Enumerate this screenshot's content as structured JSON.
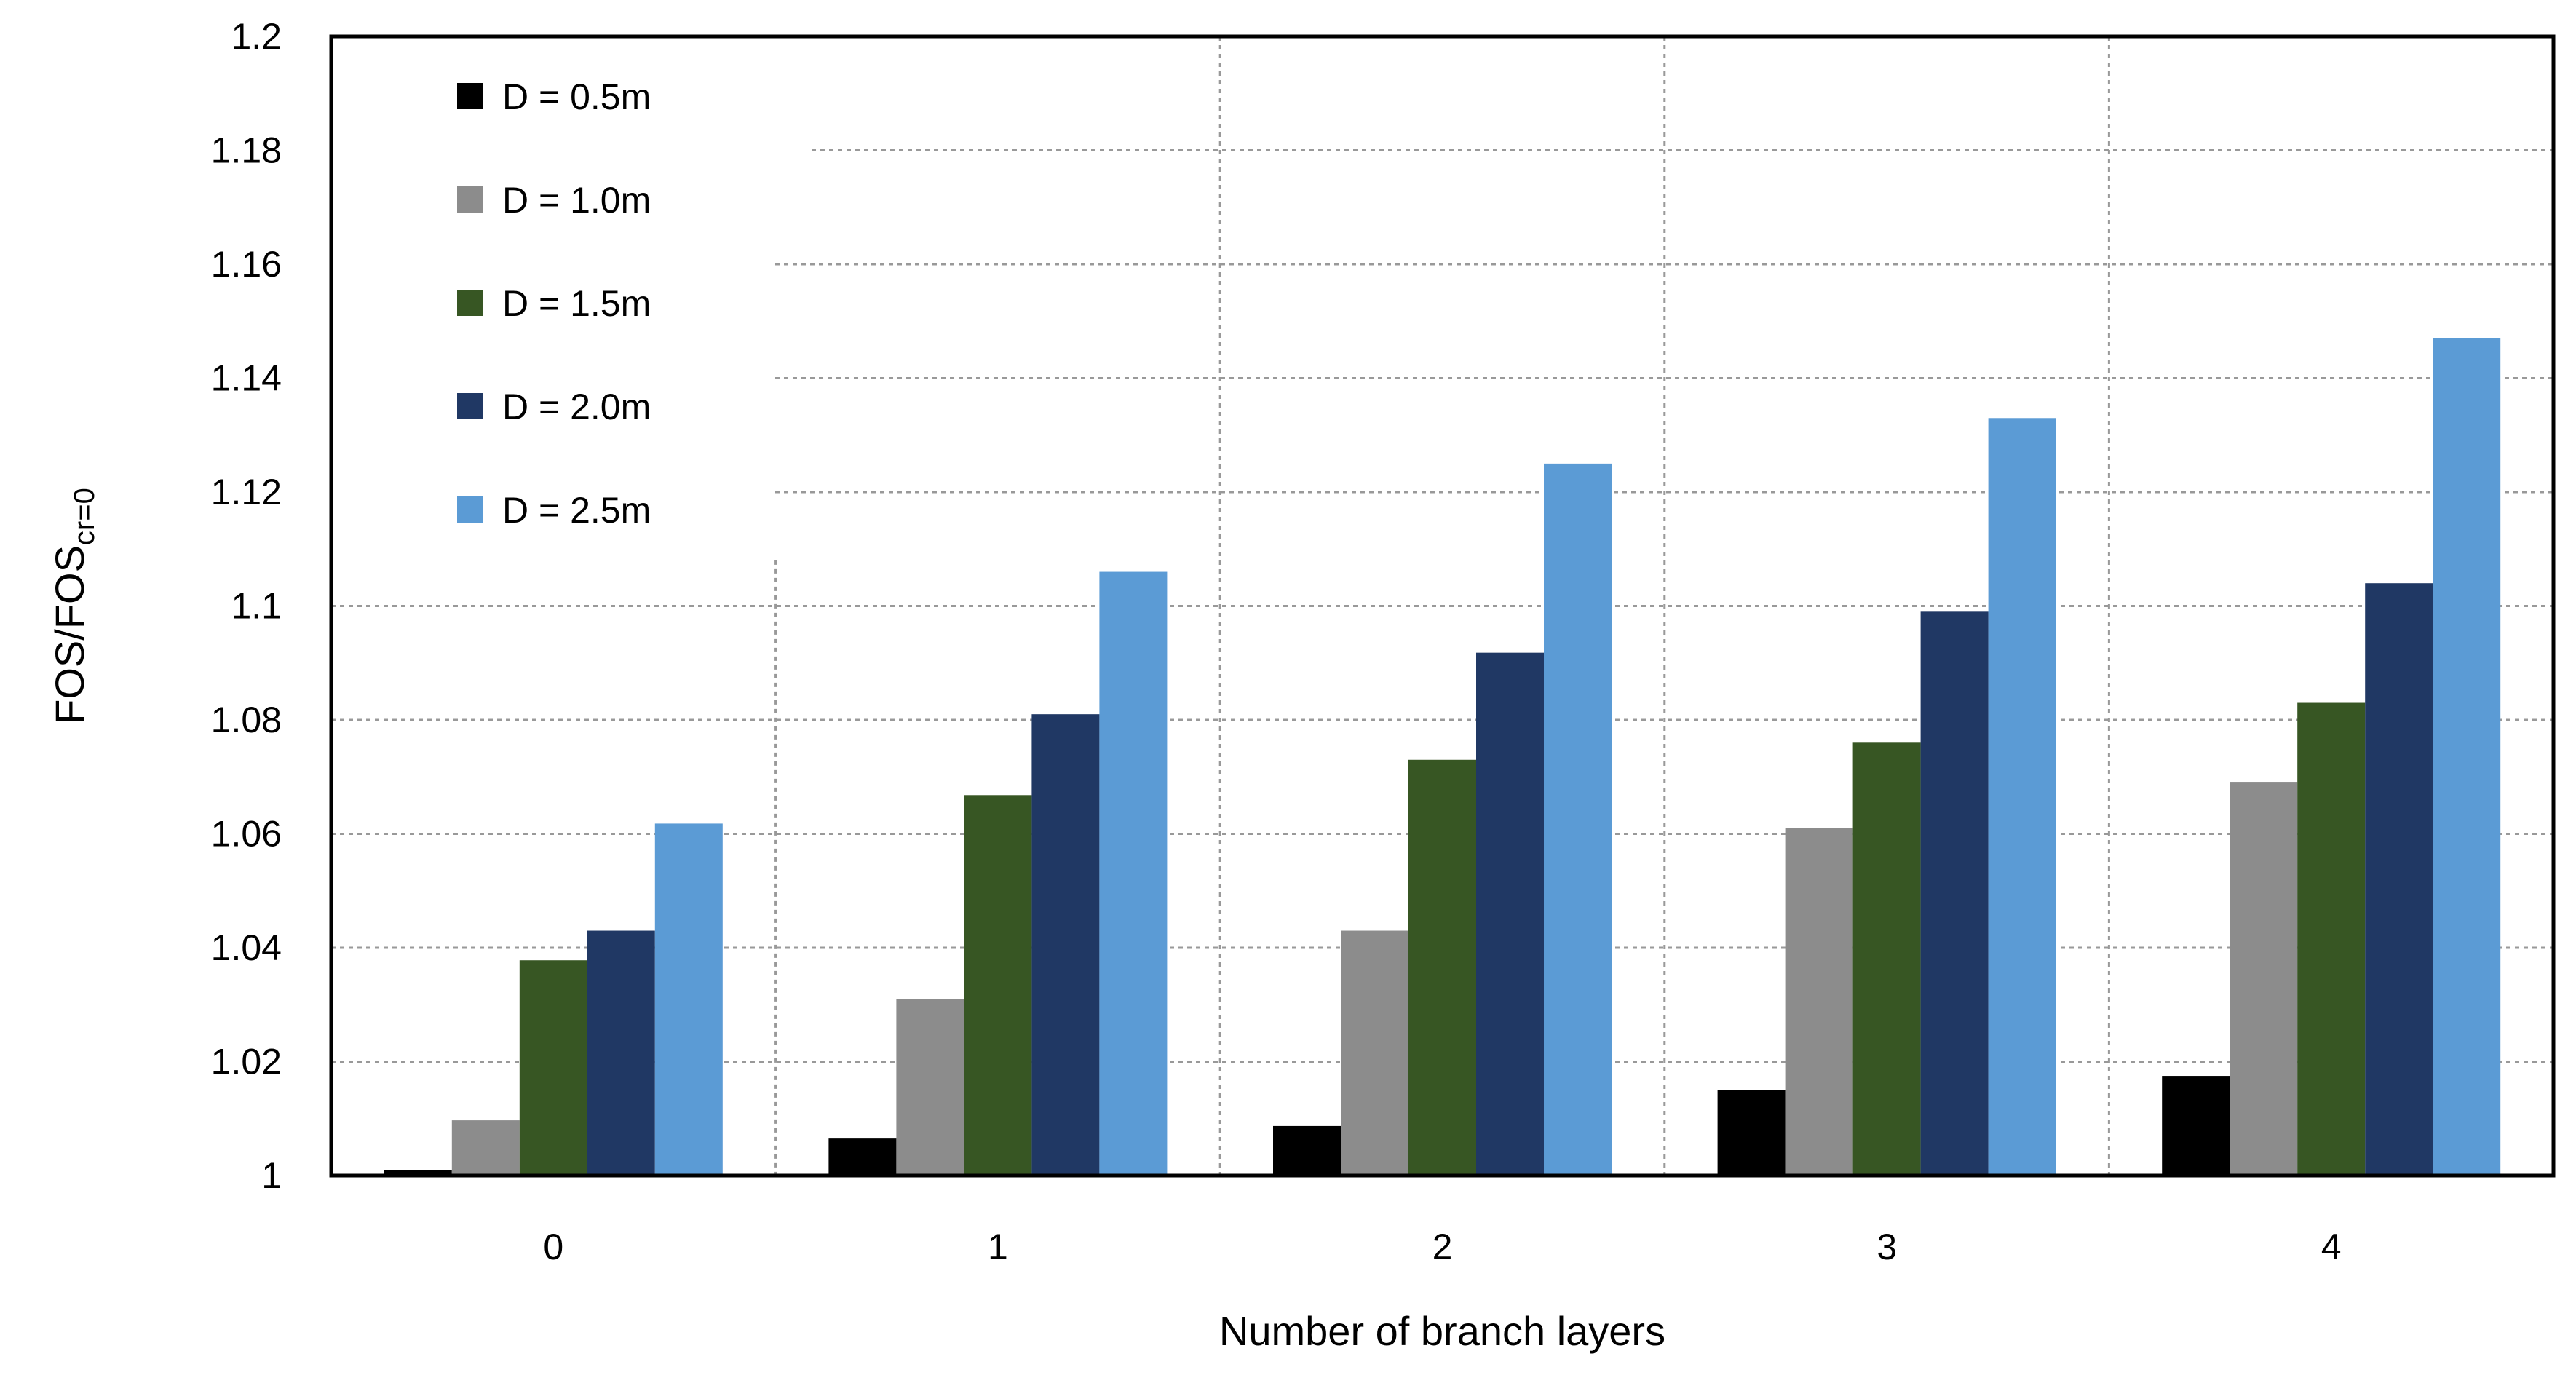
{
  "chart_data": {
    "type": "bar",
    "title": "",
    "xlabel": "Number of branch layers",
    "ylabel": "FOS/FOS",
    "ylabel_subscript": "cr=0",
    "categories": [
      "0",
      "1",
      "2",
      "3",
      "4"
    ],
    "series": [
      {
        "name": "D = 0.5m",
        "color": "#000000",
        "values": [
          1.001,
          1.0065,
          1.0087,
          1.015,
          1.0175
        ]
      },
      {
        "name": "D = 1.0m",
        "color": "#8c8c8c",
        "values": [
          1.0097,
          1.031,
          1.043,
          1.061,
          1.069
        ]
      },
      {
        "name": "D = 1.5m",
        "color": "#375623",
        "values": [
          1.0378,
          1.0668,
          1.073,
          1.076,
          1.083
        ]
      },
      {
        "name": "D = 2.0m",
        "color": "#203864",
        "values": [
          1.043,
          1.081,
          1.0918,
          1.099,
          1.104
        ]
      },
      {
        "name": "D = 2.5m",
        "color": "#5b9bd5",
        "values": [
          1.0618,
          1.106,
          1.125,
          1.133,
          1.147
        ]
      }
    ],
    "ylim": [
      1,
      1.2
    ],
    "yticks": [
      "1",
      "1.02",
      "1.04",
      "1.06",
      "1.08",
      "1.1",
      "1.12",
      "1.14",
      "1.16",
      "1.18",
      "1.2"
    ],
    "grid": true,
    "legend_position": "top-left"
  }
}
